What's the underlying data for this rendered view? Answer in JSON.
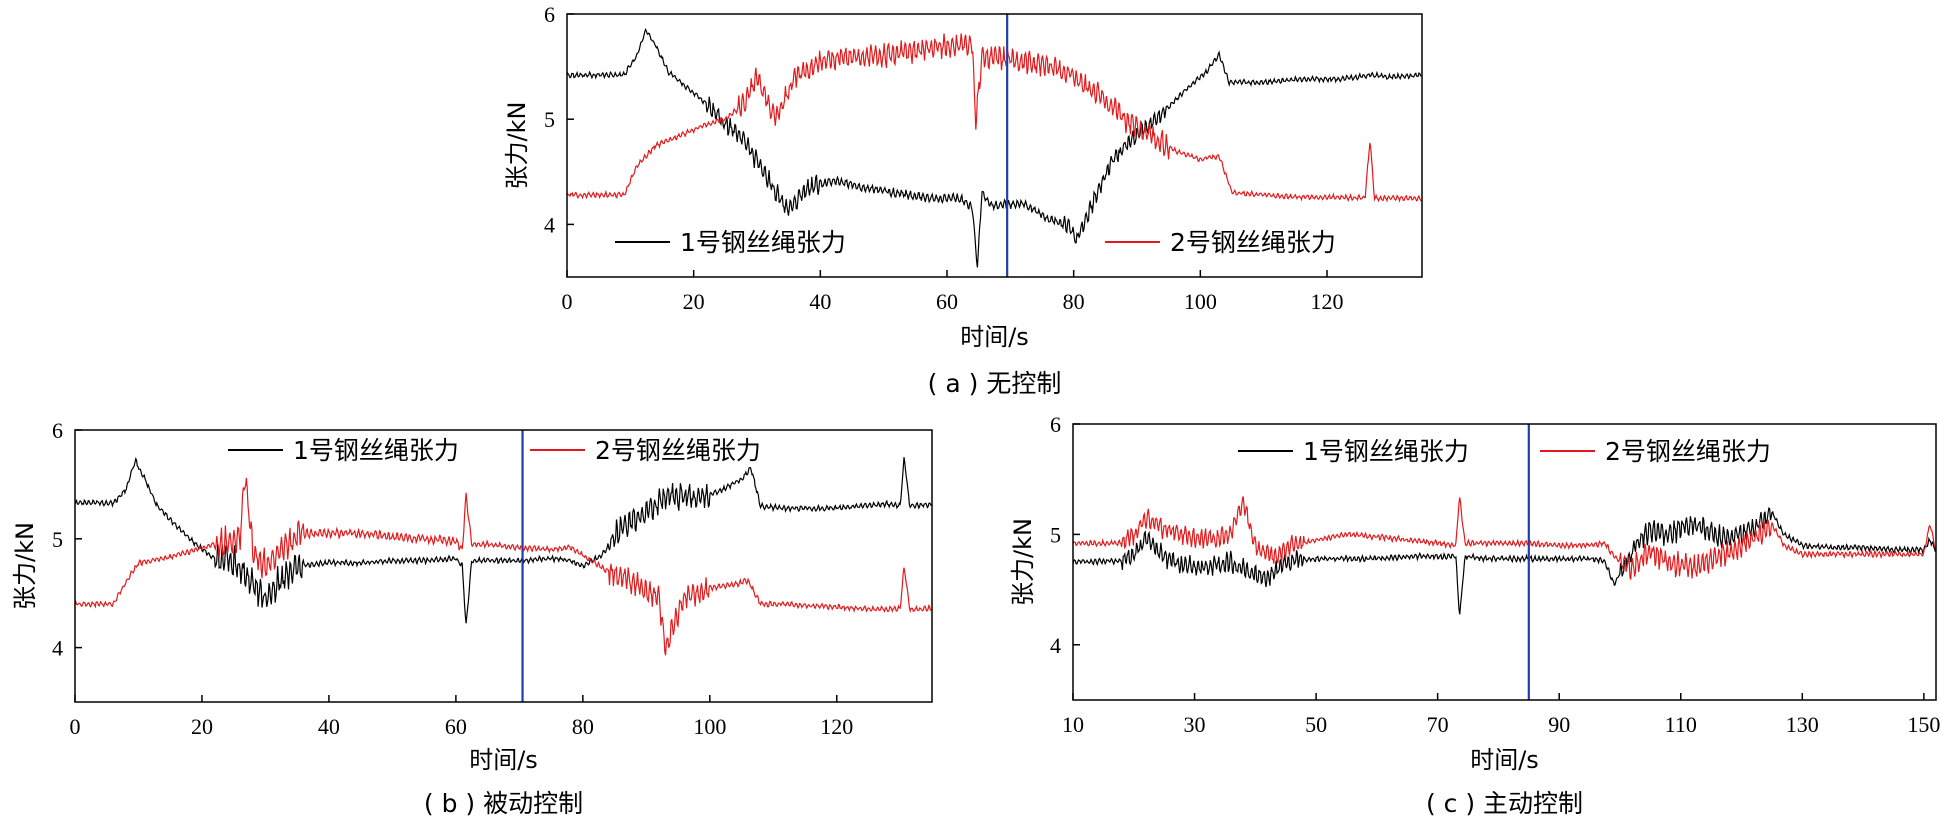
{
  "colors": {
    "series1": "#000000",
    "series2": "#e31a1c",
    "marker": "#1f3fa8"
  },
  "chart_data": [
    {
      "type": "line",
      "caption": "( a ) 无控制",
      "xlabel": "时间/s",
      "ylabel": "张力/kN",
      "xlim": [
        0,
        135
      ],
      "ylim": [
        3.5,
        6
      ],
      "xticks": [
        0,
        20,
        40,
        60,
        80,
        100,
        120
      ],
      "yticks": [
        4,
        5,
        6
      ],
      "marker_x": 69.5,
      "legend": [
        "1号钢丝绳张力",
        "2号钢丝绳张力"
      ],
      "series": [
        {
          "name": "1号钢丝绳张力",
          "x": [
            0,
            9,
            11,
            12.5,
            14,
            16,
            19,
            22,
            25,
            28,
            30,
            33,
            35,
            38,
            42,
            47,
            52,
            57,
            62,
            64,
            64.8,
            65.5,
            67,
            72,
            76,
            79,
            80.5,
            83,
            86,
            90,
            94,
            98,
            101,
            103,
            104.5,
            110,
            116,
            122,
            127,
            130,
            135
          ],
          "y": [
            5.42,
            5.42,
            5.6,
            5.85,
            5.7,
            5.45,
            5.3,
            5.15,
            4.95,
            4.8,
            4.6,
            4.3,
            4.15,
            4.35,
            4.42,
            4.35,
            4.3,
            4.25,
            4.25,
            4.15,
            3.6,
            4.3,
            4.18,
            4.2,
            4.05,
            4.0,
            3.85,
            4.2,
            4.6,
            4.85,
            5.05,
            5.3,
            5.45,
            5.62,
            5.35,
            5.35,
            5.38,
            5.38,
            5.42,
            5.4,
            5.42
          ]
        },
        {
          "name": "2号钢丝绳张力",
          "x": [
            0,
            9,
            11,
            14,
            18,
            22,
            25,
            28,
            30,
            33,
            36,
            40,
            45,
            50,
            55,
            60,
            64,
            64.5,
            65.5,
            68,
            72,
            76,
            79,
            81,
            84,
            88,
            92,
            96,
            100,
            103,
            105,
            110,
            115,
            120,
            126,
            126.8,
            127.5,
            130,
            135
          ],
          "y": [
            4.28,
            4.28,
            4.55,
            4.75,
            4.85,
            4.95,
            5.0,
            5.15,
            5.4,
            5.0,
            5.4,
            5.55,
            5.6,
            5.6,
            5.65,
            5.7,
            5.72,
            4.95,
            5.6,
            5.58,
            5.55,
            5.5,
            5.45,
            5.35,
            5.25,
            5.0,
            4.85,
            4.7,
            4.62,
            4.65,
            4.3,
            4.28,
            4.26,
            4.26,
            4.25,
            4.8,
            4.25,
            4.25,
            4.25
          ]
        }
      ]
    },
    {
      "type": "line",
      "caption": "( b ) 被动控制",
      "xlabel": "时间/s",
      "ylabel": "张力/kN",
      "xlim": [
        0,
        135
      ],
      "ylim": [
        3.5,
        6
      ],
      "xticks": [
        0,
        20,
        40,
        60,
        80,
        100,
        120
      ],
      "yticks": [
        4,
        5,
        6
      ],
      "marker_x": 70.5,
      "legend": [
        "1号钢丝绳张力",
        "2号钢丝绳张力"
      ],
      "series": [
        {
          "name": "1号钢丝绳张力",
          "x": [
            0,
            6,
            8,
            9.5,
            11,
            13,
            16,
            19,
            22,
            25,
            27,
            30,
            32,
            35,
            40,
            45,
            50,
            55,
            60,
            61,
            61.6,
            62.5,
            65,
            70,
            75,
            78,
            80,
            83,
            86,
            90,
            94,
            98,
            102,
            105,
            106.5,
            108,
            112,
            118,
            124,
            128,
            130,
            130.6,
            131.5,
            135
          ],
          "y": [
            5.33,
            5.33,
            5.45,
            5.72,
            5.55,
            5.3,
            5.12,
            4.95,
            4.82,
            4.8,
            4.65,
            4.45,
            4.6,
            4.75,
            4.78,
            4.78,
            4.8,
            4.8,
            4.82,
            4.75,
            4.2,
            4.8,
            4.8,
            4.8,
            4.82,
            4.8,
            4.75,
            4.85,
            5.1,
            5.25,
            5.4,
            5.38,
            5.45,
            5.55,
            5.65,
            5.3,
            5.28,
            5.28,
            5.3,
            5.32,
            5.3,
            5.75,
            5.3,
            5.32
          ]
        },
        {
          "name": "2号钢丝绳张力",
          "x": [
            0,
            6,
            8,
            10,
            14,
            18,
            22,
            26,
            26.8,
            28,
            30,
            33,
            36,
            40,
            45,
            50,
            55,
            60,
            61,
            61.6,
            62.5,
            65,
            70,
            75,
            78,
            80,
            84,
            88,
            92,
            93,
            96,
            100,
            104,
            106,
            108,
            112,
            118,
            124,
            128,
            130,
            130.6,
            131.5,
            135
          ],
          "y": [
            4.4,
            4.4,
            4.6,
            4.78,
            4.82,
            4.88,
            4.95,
            5.0,
            5.6,
            4.9,
            4.75,
            4.95,
            5.05,
            5.05,
            5.05,
            5.02,
            5.0,
            4.98,
            4.9,
            5.4,
            4.95,
            4.95,
            4.92,
            4.9,
            4.92,
            4.85,
            4.7,
            4.6,
            4.45,
            4.0,
            4.45,
            4.55,
            4.58,
            4.62,
            4.4,
            4.4,
            4.38,
            4.36,
            4.35,
            4.36,
            4.75,
            4.35,
            4.36
          ]
        }
      ]
    },
    {
      "type": "line",
      "caption": "( c ) 主动控制",
      "xlabel": "时间/s",
      "ylabel": "张力/kN",
      "xlim": [
        10,
        152
      ],
      "ylim": [
        3.5,
        6
      ],
      "xticks": [
        10,
        30,
        50,
        70,
        90,
        110,
        130,
        150
      ],
      "yticks": [
        4,
        5,
        6
      ],
      "marker_x": 85,
      "legend": [
        "1号钢丝绳张力",
        "2号钢丝绳张力"
      ],
      "series": [
        {
          "name": "1号钢丝绳张力",
          "x": [
            10,
            18,
            20,
            22,
            25,
            28,
            32,
            36,
            39,
            42,
            45,
            50,
            55,
            60,
            65,
            70,
            73,
            73.6,
            74.5,
            78,
            85,
            90,
            95,
            97.5,
            99,
            102,
            105,
            108,
            112,
            116,
            120,
            123,
            125,
            127,
            130,
            135,
            140,
            145,
            150,
            151,
            152
          ],
          "y": [
            4.75,
            4.76,
            4.8,
            4.95,
            4.8,
            4.72,
            4.7,
            4.75,
            4.65,
            4.6,
            4.75,
            4.78,
            4.78,
            4.78,
            4.8,
            4.8,
            4.8,
            4.25,
            4.8,
            4.78,
            4.78,
            4.78,
            4.78,
            4.76,
            4.55,
            4.85,
            5.05,
            5.0,
            5.1,
            4.98,
            5.0,
            5.1,
            5.2,
            5.0,
            4.9,
            4.88,
            4.88,
            4.86,
            4.86,
            4.95,
            4.86
          ]
        },
        {
          "name": "2号钢丝绳张力",
          "x": [
            10,
            18,
            20,
            22,
            25,
            28,
            32,
            36,
            38,
            40,
            43,
            46,
            50,
            55,
            60,
            65,
            70,
            73,
            73.6,
            74.5,
            78,
            85,
            90,
            95,
            97.5,
            99,
            102,
            105,
            108,
            112,
            116,
            120,
            123,
            125,
            127,
            130,
            135,
            140,
            145,
            150,
            151,
            152
          ],
          "y": [
            4.92,
            4.92,
            5.0,
            5.15,
            5.05,
            5.0,
            4.95,
            5.0,
            5.3,
            4.9,
            4.8,
            4.9,
            4.95,
            5.0,
            4.98,
            4.95,
            4.92,
            4.9,
            5.35,
            4.92,
            4.92,
            4.92,
            4.9,
            4.9,
            4.92,
            4.8,
            4.7,
            4.85,
            4.75,
            4.7,
            4.8,
            4.9,
            5.0,
            5.1,
            4.9,
            4.82,
            4.82,
            4.82,
            4.82,
            4.82,
            5.1,
            4.85
          ]
        }
      ]
    }
  ]
}
